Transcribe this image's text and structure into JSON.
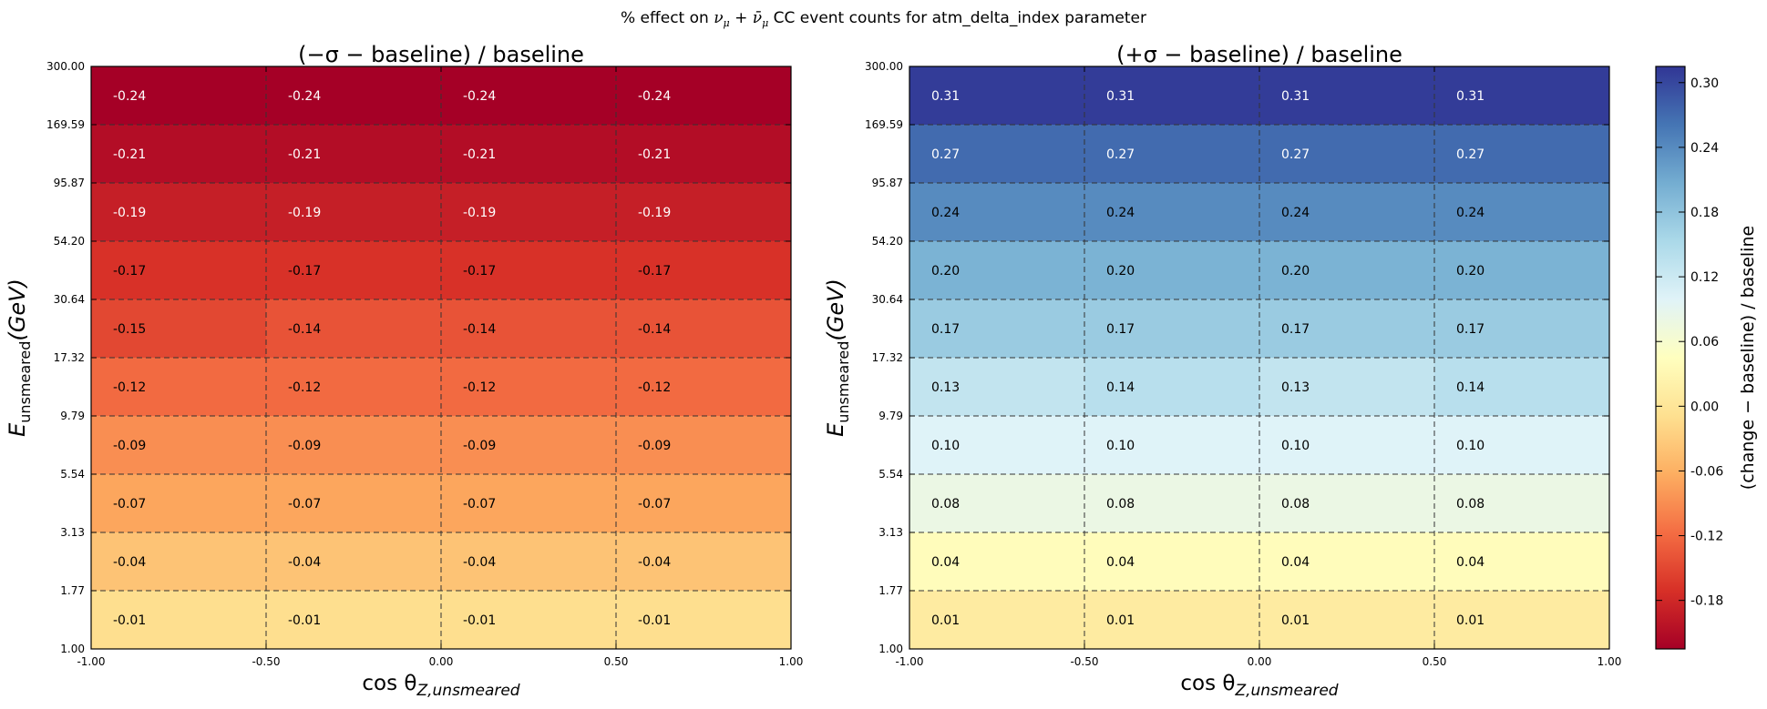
{
  "figure_title": {
    "prefix": "% effect on ",
    "math_nu": "ν",
    "math_sub": "μ",
    "plus": " + ",
    "math_nubar": "ν̄",
    "suffix": " CC event counts for atm_delta_index parameter"
  },
  "colors": {
    "background": "#ffffff",
    "axis": "#000000",
    "grid": "#333333",
    "colormap": "RdYlBu",
    "cmap_low": "#a50026",
    "cmap_mid": "#fee090",
    "cmap_high": "#313695"
  },
  "chart_data": [
    {
      "type": "heatmap",
      "title": "(−σ − baseline) / baseline",
      "xlabel": "cos θZ,unsmeared",
      "ylabel": "Eunsmeared(GeV)",
      "x_edges": [
        "-1.00",
        "-0.50",
        "0.00",
        "0.50",
        "1.00"
      ],
      "y_edges": [
        "1.00",
        "1.77",
        "3.13",
        "5.54",
        "9.79",
        "17.32",
        "30.64",
        "54.20",
        "95.87",
        "169.59",
        "300.00"
      ],
      "grid": true,
      "values_bottom_to_top": [
        [
          -0.01,
          -0.01,
          -0.01,
          -0.01
        ],
        [
          -0.04,
          -0.04,
          -0.04,
          -0.04
        ],
        [
          -0.07,
          -0.07,
          -0.07,
          -0.07
        ],
        [
          -0.09,
          -0.09,
          -0.09,
          -0.09
        ],
        [
          -0.12,
          -0.12,
          -0.12,
          -0.12
        ],
        [
          -0.15,
          -0.14,
          -0.14,
          -0.14
        ],
        [
          -0.17,
          -0.17,
          -0.17,
          -0.17
        ],
        [
          -0.19,
          -0.19,
          -0.19,
          -0.19
        ],
        [
          -0.21,
          -0.21,
          -0.21,
          -0.21
        ],
        [
          -0.24,
          -0.24,
          -0.24,
          -0.24
        ]
      ],
      "labels_bottom_to_top": [
        [
          "-0.01",
          "-0.01",
          "-0.01",
          "-0.01"
        ],
        [
          "-0.04",
          "-0.04",
          "-0.04",
          "-0.04"
        ],
        [
          "-0.07",
          "-0.07",
          "-0.07",
          "-0.07"
        ],
        [
          "-0.09",
          "-0.09",
          "-0.09",
          "-0.09"
        ],
        [
          "-0.12",
          "-0.12",
          "-0.12",
          "-0.12"
        ],
        [
          "-0.15",
          "-0.14",
          "-0.14",
          "-0.14"
        ],
        [
          "-0.17",
          "-0.17",
          "-0.17",
          "-0.17"
        ],
        [
          "-0.19",
          "-0.19",
          "-0.19",
          "-0.19"
        ],
        [
          "-0.21",
          "-0.21",
          "-0.21",
          "-0.21"
        ],
        [
          "-0.24",
          "-0.24",
          "-0.24",
          "-0.24"
        ]
      ]
    },
    {
      "type": "heatmap",
      "title": "(+σ − baseline) / baseline",
      "xlabel": "cos θZ,unsmeared",
      "ylabel": "Eunsmeared(GeV)",
      "x_edges": [
        "-1.00",
        "-0.50",
        "0.00",
        "0.50",
        "1.00"
      ],
      "y_edges": [
        "1.00",
        "1.77",
        "3.13",
        "5.54",
        "9.79",
        "17.32",
        "30.64",
        "54.20",
        "95.87",
        "169.59",
        "300.00"
      ],
      "grid": true,
      "values_bottom_to_top": [
        [
          0.01,
          0.01,
          0.01,
          0.01
        ],
        [
          0.04,
          0.04,
          0.04,
          0.04
        ],
        [
          0.08,
          0.08,
          0.08,
          0.08
        ],
        [
          0.1,
          0.1,
          0.1,
          0.1
        ],
        [
          0.13,
          0.14,
          0.13,
          0.14
        ],
        [
          0.17,
          0.17,
          0.17,
          0.17
        ],
        [
          0.2,
          0.2,
          0.2,
          0.2
        ],
        [
          0.24,
          0.24,
          0.24,
          0.24
        ],
        [
          0.27,
          0.27,
          0.27,
          0.27
        ],
        [
          0.31,
          0.31,
          0.31,
          0.31
        ]
      ],
      "labels_bottom_to_top": [
        [
          "0.01",
          "0.01",
          "0.01",
          "0.01"
        ],
        [
          "0.04",
          "0.04",
          "0.04",
          "0.04"
        ],
        [
          "0.08",
          "0.08",
          "0.08",
          "0.08"
        ],
        [
          "0.10",
          "0.10",
          "0.10",
          "0.10"
        ],
        [
          "0.13",
          "0.14",
          "0.13",
          "0.14"
        ],
        [
          "0.17",
          "0.17",
          "0.17",
          "0.17"
        ],
        [
          "0.20",
          "0.20",
          "0.20",
          "0.20"
        ],
        [
          "0.24",
          "0.24",
          "0.24",
          "0.24"
        ],
        [
          "0.27",
          "0.27",
          "0.27",
          "0.27"
        ],
        [
          "0.31",
          "0.31",
          "0.31",
          "0.31"
        ]
      ]
    }
  ],
  "colorbar": {
    "label": "(change − baseline) / baseline",
    "vmin": -0.225,
    "vmax": 0.315,
    "ticks": [
      "-0.18",
      "-0.12",
      "-0.06",
      "0.00",
      "0.06",
      "0.12",
      "0.18",
      "0.24",
      "0.30"
    ]
  }
}
